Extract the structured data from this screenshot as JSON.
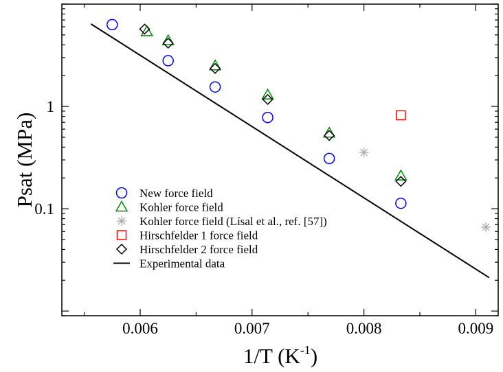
{
  "chart_data": {
    "type": "scatter",
    "xlabel": "1/T (K",
    "xlabel_sup": "-1",
    "xlabel_close": ")",
    "ylabel": "Psat (MPa)",
    "xlim": [
      0.0053,
      0.0092
    ],
    "ylim": [
      0.009,
      10
    ],
    "yscale": "log",
    "grid": false,
    "legend_position": "lower-left",
    "x_ticks": [
      {
        "value": 0.006,
        "label": "0.006"
      },
      {
        "value": 0.007,
        "label": "0.007"
      },
      {
        "value": 0.008,
        "label": "0.008"
      },
      {
        "value": 0.009,
        "label": "0.009"
      }
    ],
    "y_ticks": [
      {
        "value": 0.1,
        "label": "0.1"
      },
      {
        "value": 1,
        "label": "1"
      }
    ],
    "series": [
      {
        "name": "New force field",
        "marker": "circle",
        "color": "#0000ff",
        "x": [
          0.00575,
          0.00625,
          0.00667,
          0.00714,
          0.00769,
          0.00833
        ],
        "y": [
          6.3,
          2.8,
          1.55,
          0.78,
          0.31,
          0.113
        ]
      },
      {
        "name": "Kohler force field",
        "marker": "triangle",
        "color": "#008800",
        "x": [
          0.00606,
          0.00625,
          0.00667,
          0.00714,
          0.00769,
          0.00833
        ],
        "y": [
          5.4,
          4.4,
          2.5,
          1.3,
          0.55,
          0.21
        ]
      },
      {
        "name": "Kohler force field (Lísal et al., ref. [57])",
        "marker": "asterisk",
        "color": "#aaaaaa",
        "x": [
          0.008,
          0.00909
        ],
        "y": [
          0.355,
          0.066
        ]
      },
      {
        "name": "Hirschfelder 1 force field",
        "marker": "square",
        "color": "#ff0000",
        "x": [
          0.00833
        ],
        "y": [
          0.82
        ]
      },
      {
        "name": "Hirschfelder 2 force field",
        "marker": "diamond",
        "color": "#000000",
        "x": [
          0.00604,
          0.00625,
          0.00667,
          0.00714,
          0.00769,
          0.00833
        ],
        "y": [
          5.7,
          4.15,
          2.35,
          1.17,
          0.52,
          0.185
        ]
      },
      {
        "name": "Experimental data",
        "marker": "line",
        "color": "#000000",
        "x": [
          0.00556,
          0.00912
        ],
        "y": [
          6.4,
          0.0212
        ]
      }
    ]
  }
}
